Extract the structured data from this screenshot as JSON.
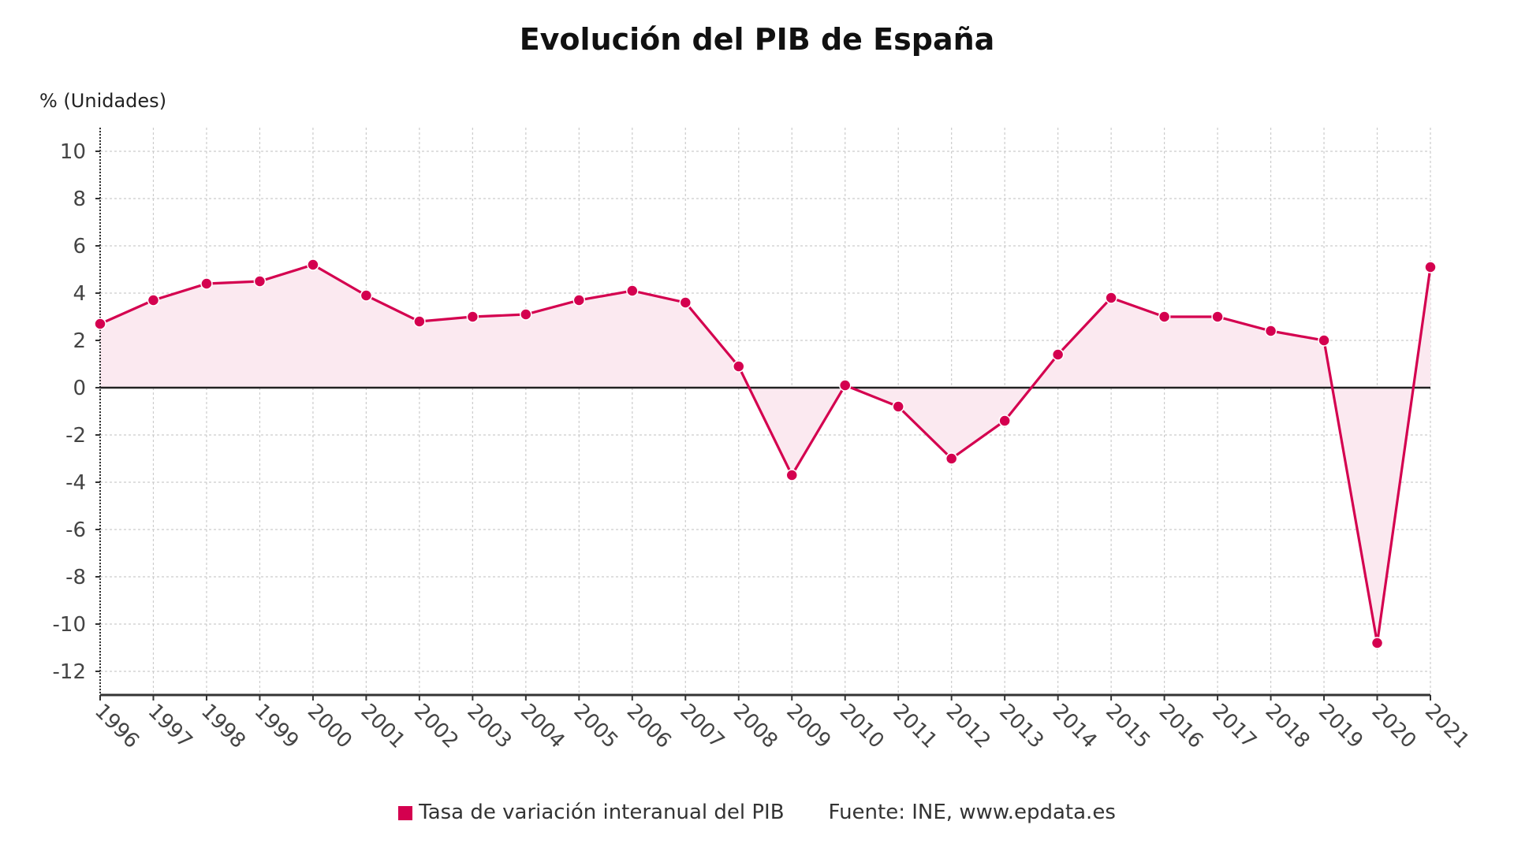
{
  "chart_data": {
    "type": "line",
    "title": "Evolución del PIB de España",
    "ylabel": "% (Unidades)",
    "xlabel": "",
    "categories": [
      "1996",
      "1997",
      "1998",
      "1999",
      "2000",
      "2001",
      "2002",
      "2003",
      "2004",
      "2005",
      "2006",
      "2007",
      "2008",
      "2009",
      "2010",
      "2011",
      "2012",
      "2013",
      "2014",
      "2015",
      "2016",
      "2017",
      "2018",
      "2019",
      "2020",
      "2021"
    ],
    "series": [
      {
        "name": "Tasa de variación interanual del PIB",
        "values": [
          2.7,
          3.7,
          4.4,
          4.5,
          5.2,
          3.9,
          2.8,
          3.0,
          3.1,
          3.7,
          4.1,
          3.6,
          0.9,
          -3.7,
          0.1,
          -0.8,
          -3.0,
          -1.4,
          1.4,
          3.8,
          3.0,
          3.0,
          2.4,
          2.0,
          -10.8,
          5.1
        ]
      }
    ],
    "yticks": [
      10,
      8,
      6,
      4,
      2,
      0,
      -2,
      -4,
      -6,
      -8,
      -10,
      -12
    ],
    "ylim": [
      -13,
      11
    ],
    "grid": true,
    "area_fill": true,
    "legend_position": "bottom",
    "source": "Fuente: INE, www.epdata.es",
    "colors": {
      "series": "#d4004f",
      "fill": "#fbe9f0",
      "zero_line": "#222222",
      "grid": "#cccccc"
    }
  }
}
